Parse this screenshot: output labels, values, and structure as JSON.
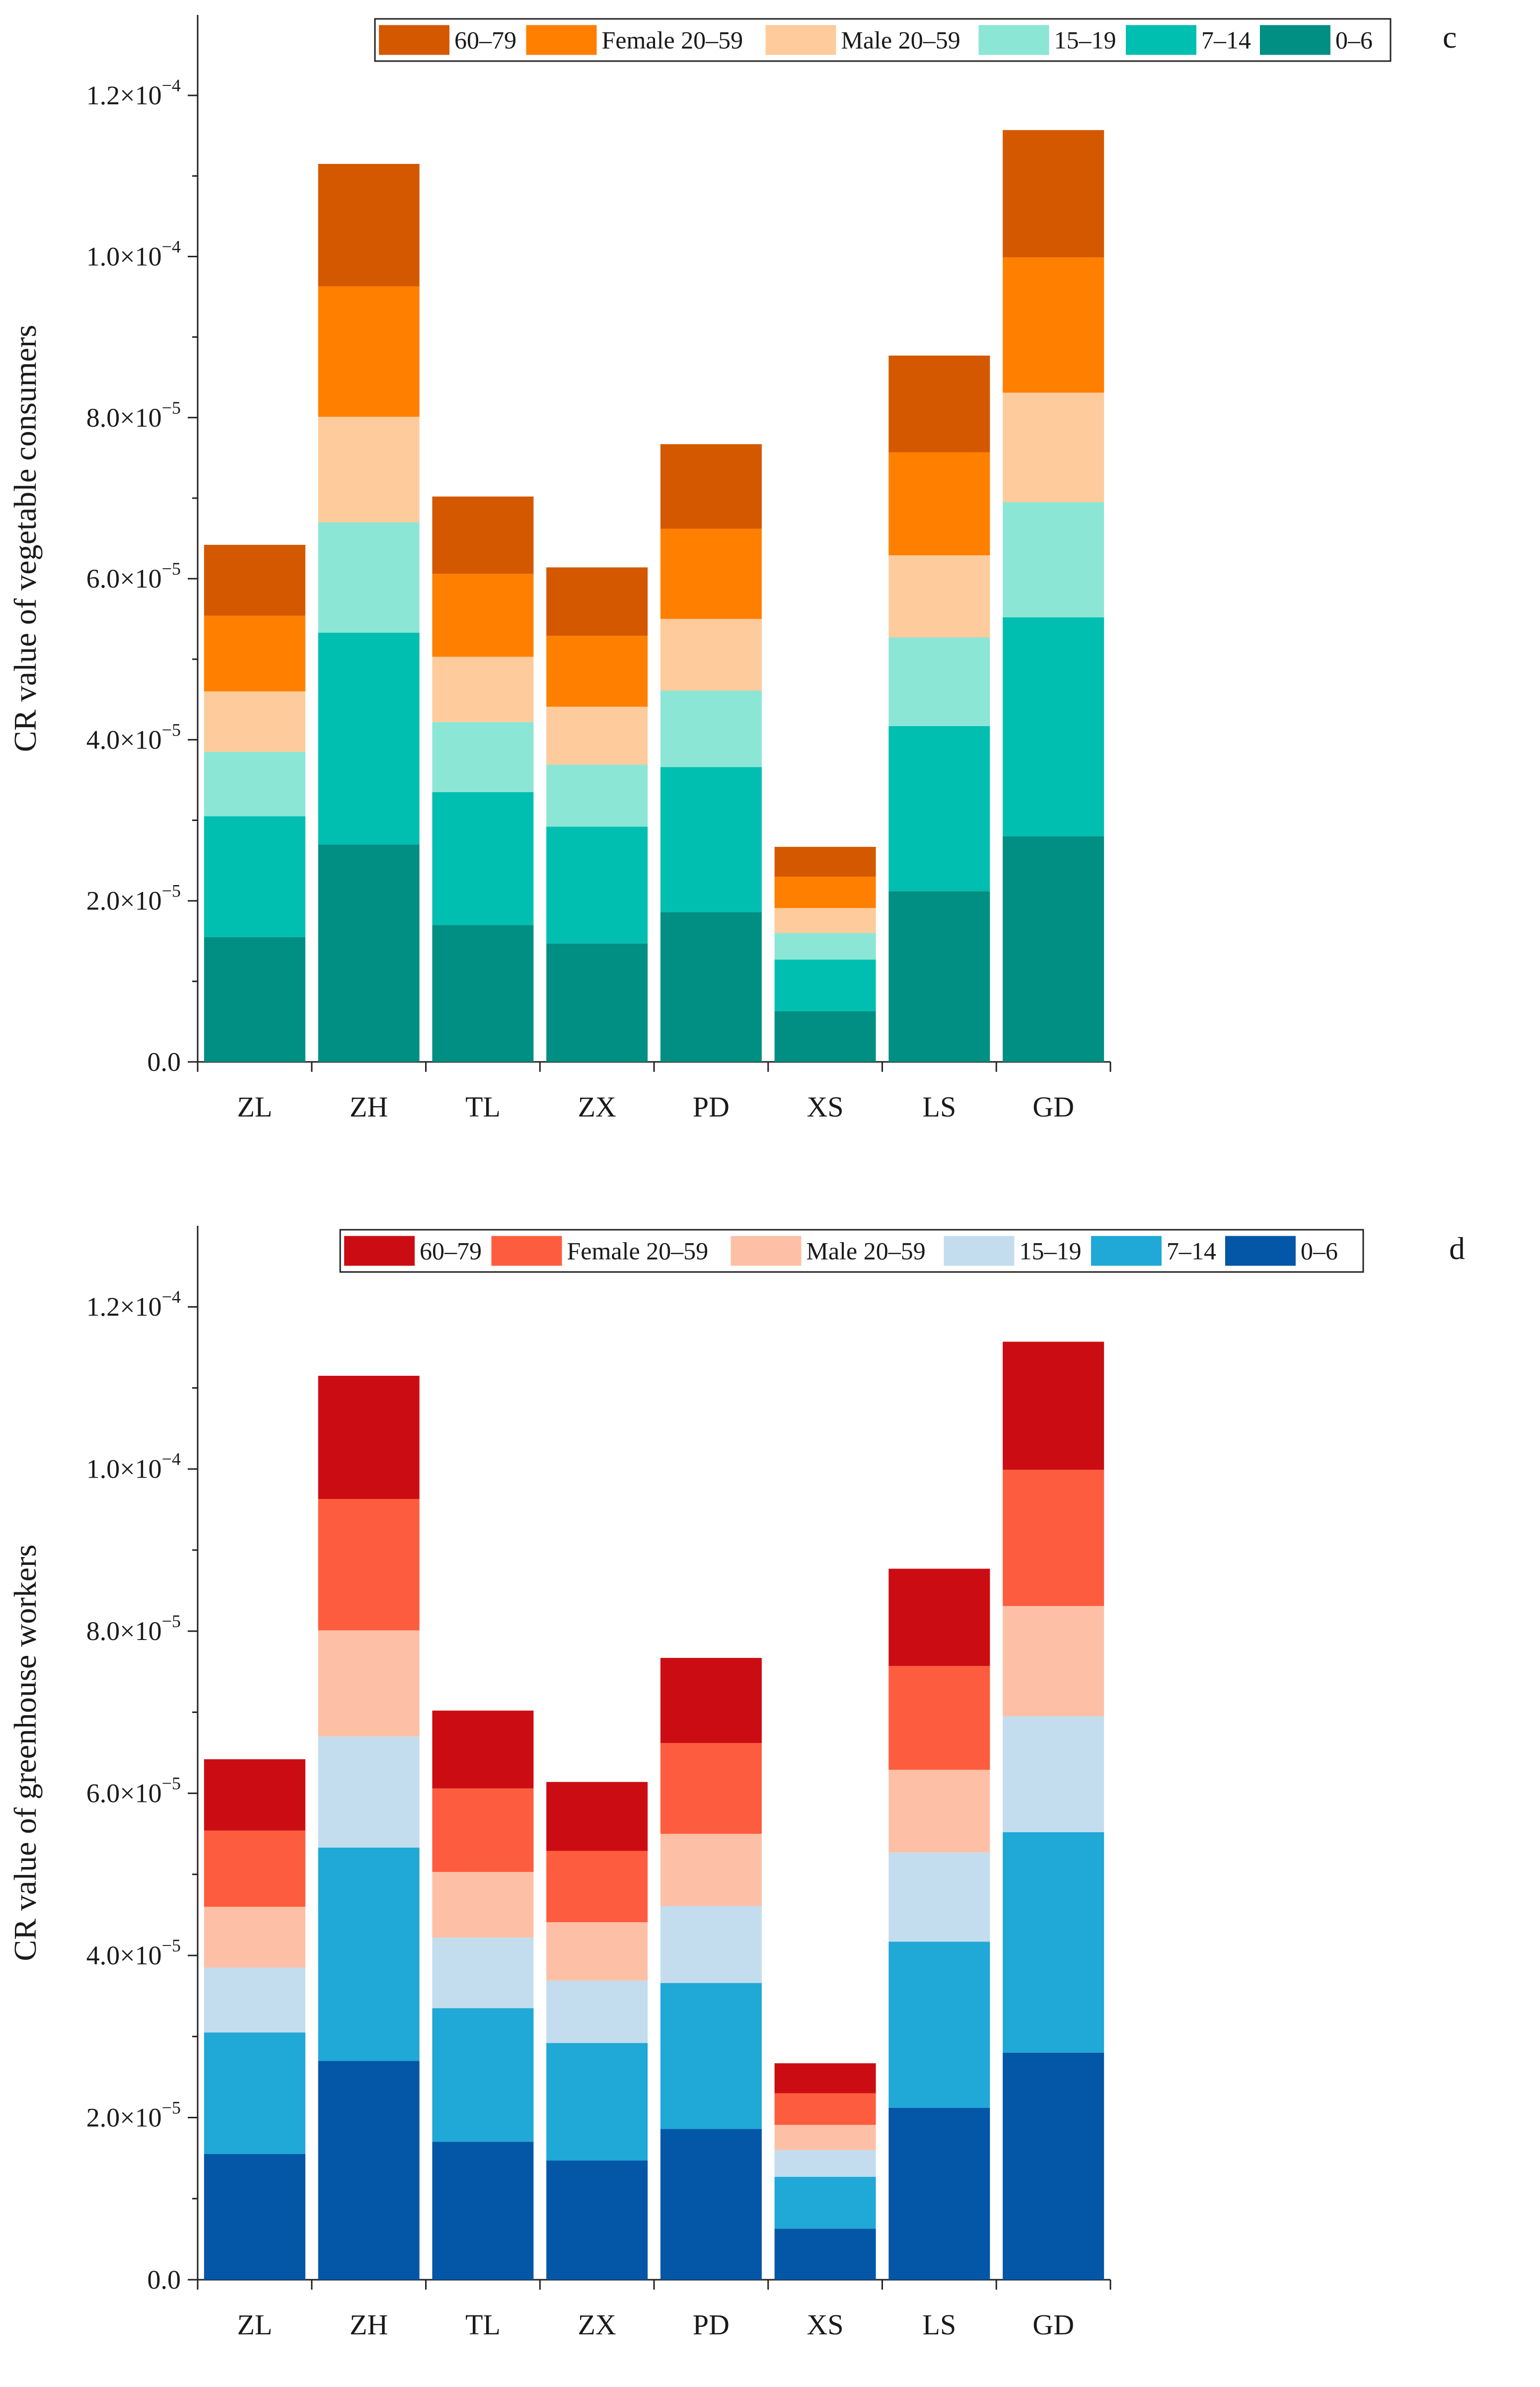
{
  "chart_data": [
    {
      "type": "bar",
      "stacked": true,
      "panel_label": "c",
      "ylabel": "CR value of vegetable consumers",
      "ylim": [
        0,
        0.00013
      ],
      "yticks": [
        {
          "value": 0.0,
          "mantissa": "0.0",
          "exponent": ""
        },
        {
          "value": 2e-05,
          "mantissa": "2.0×10",
          "exponent": "−5"
        },
        {
          "value": 4e-05,
          "mantissa": "4.0×10",
          "exponent": "−5"
        },
        {
          "value": 6e-05,
          "mantissa": "6.0×10",
          "exponent": "−5"
        },
        {
          "value": 8e-05,
          "mantissa": "8.0×10",
          "exponent": "−5"
        },
        {
          "value": 0.0001,
          "mantissa": "1.0×10",
          "exponent": "−4"
        },
        {
          "value": 0.00012,
          "mantissa": "1.2×10",
          "exponent": "−4"
        }
      ],
      "categories": [
        "ZL",
        "ZH",
        "TL",
        "ZX",
        "PD",
        "XS",
        "LS",
        "GD"
      ],
      "legend_order": [
        "60–79",
        "Female 20–59",
        "Male 20–59",
        "15–19",
        "7–14",
        "0–6"
      ],
      "series": [
        {
          "name": "0–6",
          "color": "#008f82",
          "values": [
            1.55e-05,
            2.7e-05,
            1.7e-05,
            1.47e-05,
            1.86e-05,
            6.3e-06,
            2.12e-05,
            2.8e-05
          ]
        },
        {
          "name": "7–14",
          "color": "#00bfb0",
          "values": [
            1.5e-05,
            2.63e-05,
            1.65e-05,
            1.45e-05,
            1.8e-05,
            6.4e-06,
            2.05e-05,
            2.72e-05
          ]
        },
        {
          "name": "15–19",
          "color": "#8ce6d5",
          "values": [
            8e-06,
            1.37e-05,
            8.7e-06,
            7.7e-06,
            9.5e-06,
            3.3e-06,
            1.1e-05,
            1.43e-05
          ]
        },
        {
          "name": "Male 20–59",
          "color": "#fdcb9c",
          "values": [
            7.5e-06,
            1.31e-05,
            8.1e-06,
            7.2e-06,
            8.9e-06,
            3.1e-06,
            1.02e-05,
            1.36e-05
          ]
        },
        {
          "name": "Female 20–59",
          "color": "#ff7f00",
          "values": [
            9.4e-06,
            1.62e-05,
            1.03e-05,
            8.8e-06,
            1.12e-05,
            3.9e-06,
            1.28e-05,
            1.68e-05
          ]
        },
        {
          "name": "60–79",
          "color": "#d45800",
          "values": [
            8.8e-06,
            1.52e-05,
            9.6e-06,
            8.5e-06,
            1.05e-05,
            3.7e-06,
            1.2e-05,
            1.58e-05
          ]
        }
      ]
    },
    {
      "type": "bar",
      "stacked": true,
      "panel_label": "d",
      "ylabel": "CR value of greenhouse workers",
      "ylim": [
        0,
        0.00013
      ],
      "yticks": [
        {
          "value": 0.0,
          "mantissa": "0.0",
          "exponent": ""
        },
        {
          "value": 2e-05,
          "mantissa": "2.0×10",
          "exponent": "−5"
        },
        {
          "value": 4e-05,
          "mantissa": "4.0×10",
          "exponent": "−5"
        },
        {
          "value": 6e-05,
          "mantissa": "6.0×10",
          "exponent": "−5"
        },
        {
          "value": 8e-05,
          "mantissa": "8.0×10",
          "exponent": "−5"
        },
        {
          "value": 0.0001,
          "mantissa": "1.0×10",
          "exponent": "−4"
        },
        {
          "value": 0.00012,
          "mantissa": "1.2×10",
          "exponent": "−4"
        }
      ],
      "categories": [
        "ZL",
        "ZH",
        "TL",
        "ZX",
        "PD",
        "XS",
        "LS",
        "GD"
      ],
      "legend_order": [
        "60–79",
        "Female 20–59",
        "Male 20–59",
        "15–19",
        "7–14",
        "0–6"
      ],
      "series": [
        {
          "name": "0–6",
          "color": "#0456a6",
          "values": [
            1.55e-05,
            2.7e-05,
            1.7e-05,
            1.47e-05,
            1.86e-05,
            6.3e-06,
            2.12e-05,
            2.8e-05
          ]
        },
        {
          "name": "7–14",
          "color": "#20a8d6",
          "values": [
            1.5e-05,
            2.63e-05,
            1.65e-05,
            1.45e-05,
            1.8e-05,
            6.4e-06,
            2.05e-05,
            2.72e-05
          ]
        },
        {
          "name": "15–19",
          "color": "#c3ddee",
          "values": [
            8e-06,
            1.37e-05,
            8.7e-06,
            7.7e-06,
            9.5e-06,
            3.3e-06,
            1.1e-05,
            1.43e-05
          ]
        },
        {
          "name": "Male 20–59",
          "color": "#fdc0a6",
          "values": [
            7.5e-06,
            1.31e-05,
            8.1e-06,
            7.2e-06,
            8.9e-06,
            3.1e-06,
            1.02e-05,
            1.36e-05
          ]
        },
        {
          "name": "Female 20–59",
          "color": "#fe5c3e",
          "values": [
            9.4e-06,
            1.62e-05,
            1.03e-05,
            8.8e-06,
            1.12e-05,
            3.9e-06,
            1.28e-05,
            1.68e-05
          ]
        },
        {
          "name": "60–79",
          "color": "#cb0d13",
          "values": [
            8.8e-06,
            1.52e-05,
            9.6e-06,
            8.5e-06,
            1.05e-05,
            3.7e-06,
            1.2e-05,
            1.58e-05
          ]
        }
      ]
    }
  ]
}
